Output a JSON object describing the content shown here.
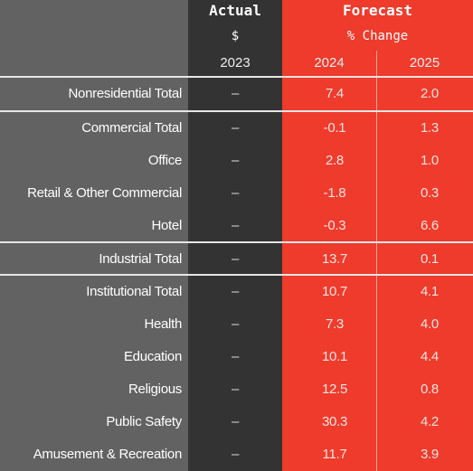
{
  "header": {
    "actual_title": "Actual",
    "actual_unit": "$",
    "actual_year": "2023",
    "forecast_title": "Forecast",
    "forecast_unit": "% Change",
    "forecast_year_1": "2024",
    "forecast_year_2": "2025"
  },
  "rows": [
    {
      "label": "Nonresidential Total",
      "actual": "–",
      "y2024": "7.4",
      "y2025": "2.0"
    },
    {
      "label": "Commercial Total",
      "actual": "–",
      "y2024": "-0.1",
      "y2025": "1.3"
    },
    {
      "label": "Office",
      "actual": "–",
      "y2024": "2.8",
      "y2025": "1.0"
    },
    {
      "label": "Retail & Other Commercial",
      "actual": "–",
      "y2024": "-1.8",
      "y2025": "0.3"
    },
    {
      "label": "Hotel",
      "actual": "–",
      "y2024": "-0.3",
      "y2025": "6.6"
    },
    {
      "label": "Industrial Total",
      "actual": "–",
      "y2024": "13.7",
      "y2025": "0.1"
    },
    {
      "label": "Institutional Total",
      "actual": "–",
      "y2024": "10.7",
      "y2025": "4.1"
    },
    {
      "label": "Health",
      "actual": "–",
      "y2024": "7.3",
      "y2025": "4.0"
    },
    {
      "label": "Education",
      "actual": "–",
      "y2024": "10.1",
      "y2025": "4.4"
    },
    {
      "label": "Religious",
      "actual": "–",
      "y2024": "12.5",
      "y2025": "0.8"
    },
    {
      "label": "Public Safety",
      "actual": "–",
      "y2024": "30.3",
      "y2025": "4.2"
    },
    {
      "label": "Amusement & Recreation",
      "actual": "–",
      "y2024": "11.7",
      "y2025": "3.9"
    }
  ],
  "colors": {
    "label_column": "#626262",
    "actual_column": "#333333",
    "forecast_column": "#ee3b2c"
  }
}
